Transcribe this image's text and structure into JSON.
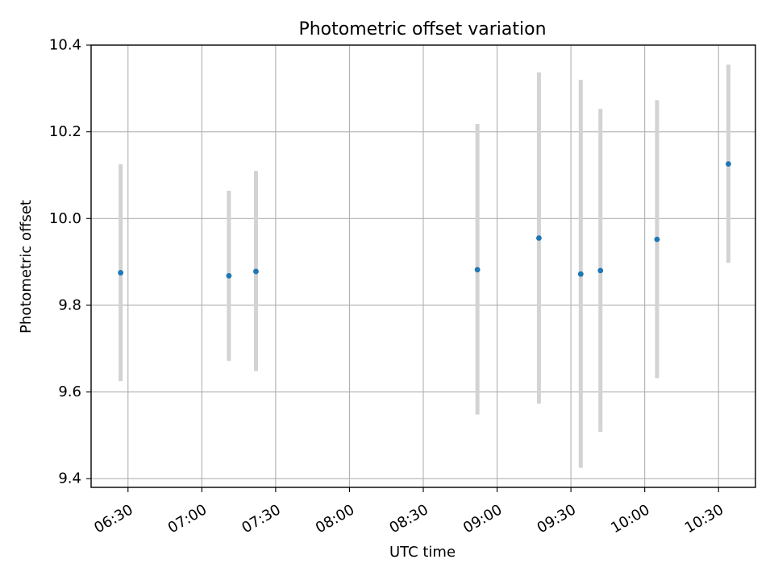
{
  "chart_data": {
    "type": "scatter",
    "title": "Photometric offset variation",
    "xlabel": "UTC time",
    "ylabel": "Photometric offset",
    "xlim": [
      "06:15",
      "10:45"
    ],
    "ylim": [
      9.38,
      10.4
    ],
    "x_ticks": [
      "06:30",
      "07:00",
      "07:30",
      "08:00",
      "08:30",
      "09:00",
      "09:30",
      "10:00",
      "10:30"
    ],
    "y_ticks": [
      "9.4",
      "9.6",
      "9.8",
      "10.0",
      "10.2",
      "10.4"
    ],
    "grid": true,
    "point_color": "#1f77b4",
    "errorbar_color": "#d3d3d3",
    "points": [
      {
        "time": "06:27",
        "value": 9.875,
        "low": 9.625,
        "high": 10.125
      },
      {
        "time": "07:11",
        "value": 9.868,
        "low": 9.672,
        "high": 10.064
      },
      {
        "time": "07:22",
        "value": 9.878,
        "low": 9.648,
        "high": 10.11
      },
      {
        "time": "08:52",
        "value": 9.882,
        "low": 9.548,
        "high": 10.218
      },
      {
        "time": "09:17",
        "value": 9.955,
        "low": 9.573,
        "high": 10.337
      },
      {
        "time": "09:34",
        "value": 9.872,
        "low": 9.425,
        "high": 10.32
      },
      {
        "time": "09:42",
        "value": 9.88,
        "low": 9.508,
        "high": 10.253
      },
      {
        "time": "10:05",
        "value": 9.952,
        "low": 9.632,
        "high": 10.273
      },
      {
        "time": "10:34",
        "value": 10.126,
        "low": 9.898,
        "high": 10.355
      }
    ]
  }
}
